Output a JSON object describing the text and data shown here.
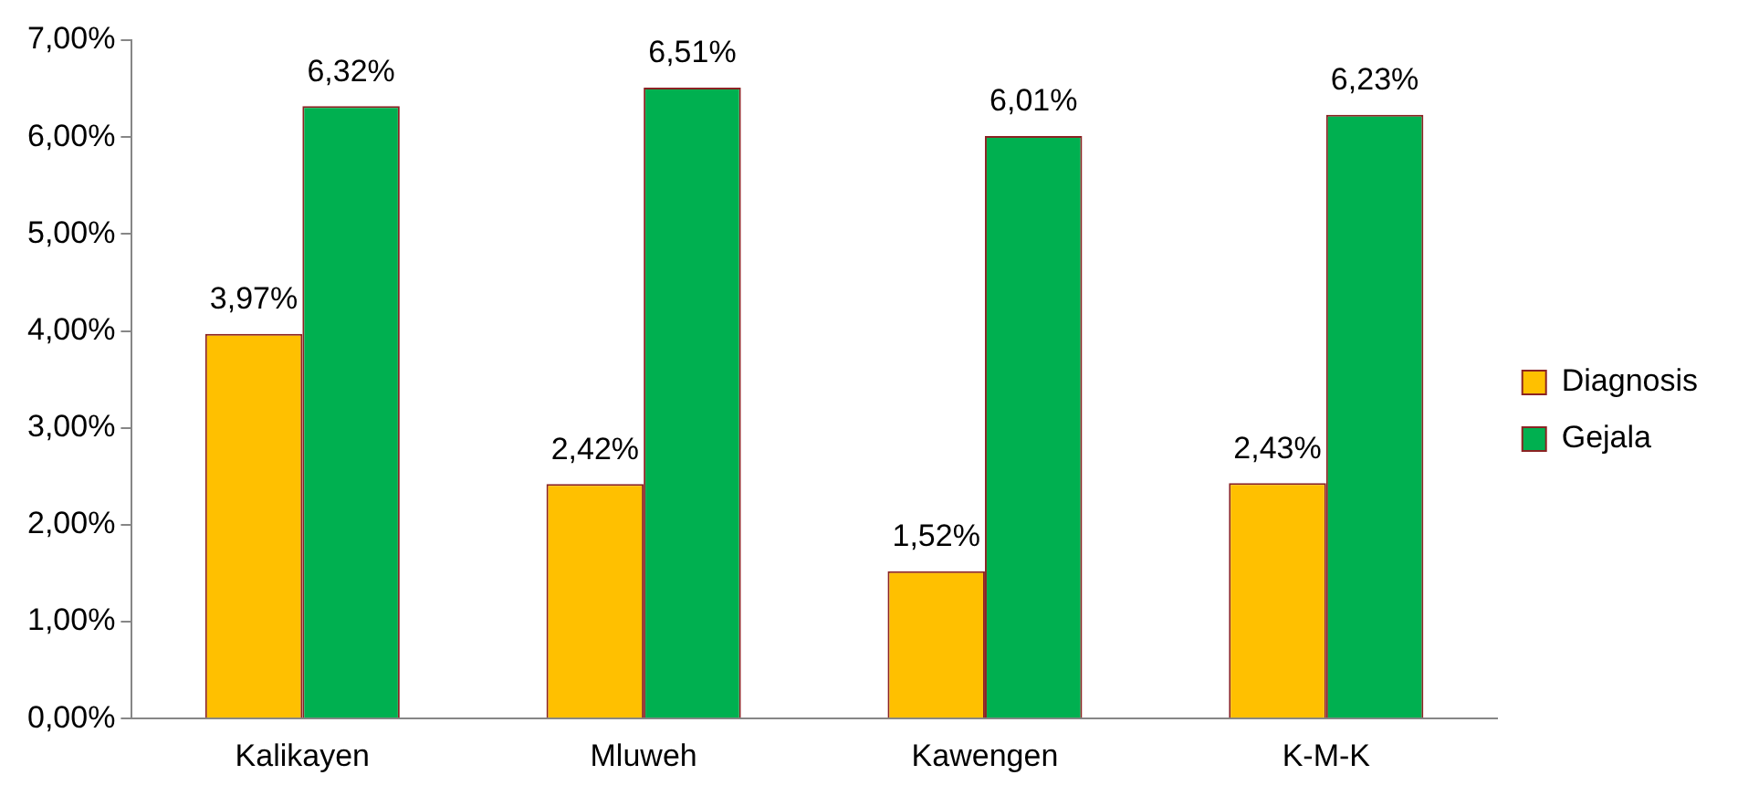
{
  "chart_data": {
    "type": "bar",
    "categories": [
      "Kalikayen",
      "Mluweh",
      "Kawengen",
      "K-M-K"
    ],
    "series": [
      {
        "name": "Diagnosis",
        "color": "#ffc000",
        "values": [
          3.97,
          2.42,
          1.52,
          2.43
        ],
        "value_labels": [
          "3,97%",
          "2,42%",
          "1,52%",
          "2,43%"
        ]
      },
      {
        "name": "Gejala",
        "color": "#00b050",
        "values": [
          6.32,
          6.51,
          6.01,
          6.23
        ],
        "value_labels": [
          "6,32%",
          "6,51%",
          "6,01%",
          "6,23%"
        ]
      }
    ],
    "ylim": [
      0,
      7
    ],
    "yticks": [
      {
        "value": 0,
        "label": "0,00%"
      },
      {
        "value": 1,
        "label": "1,00%"
      },
      {
        "value": 2,
        "label": "2,00%"
      },
      {
        "value": 3,
        "label": "3,00%"
      },
      {
        "value": 4,
        "label": "4,00%"
      },
      {
        "value": 5,
        "label": "5,00%"
      },
      {
        "value": 6,
        "label": "6,00%"
      },
      {
        "value": 7,
        "label": "7,00%"
      }
    ],
    "grid": false,
    "legend": "right"
  }
}
